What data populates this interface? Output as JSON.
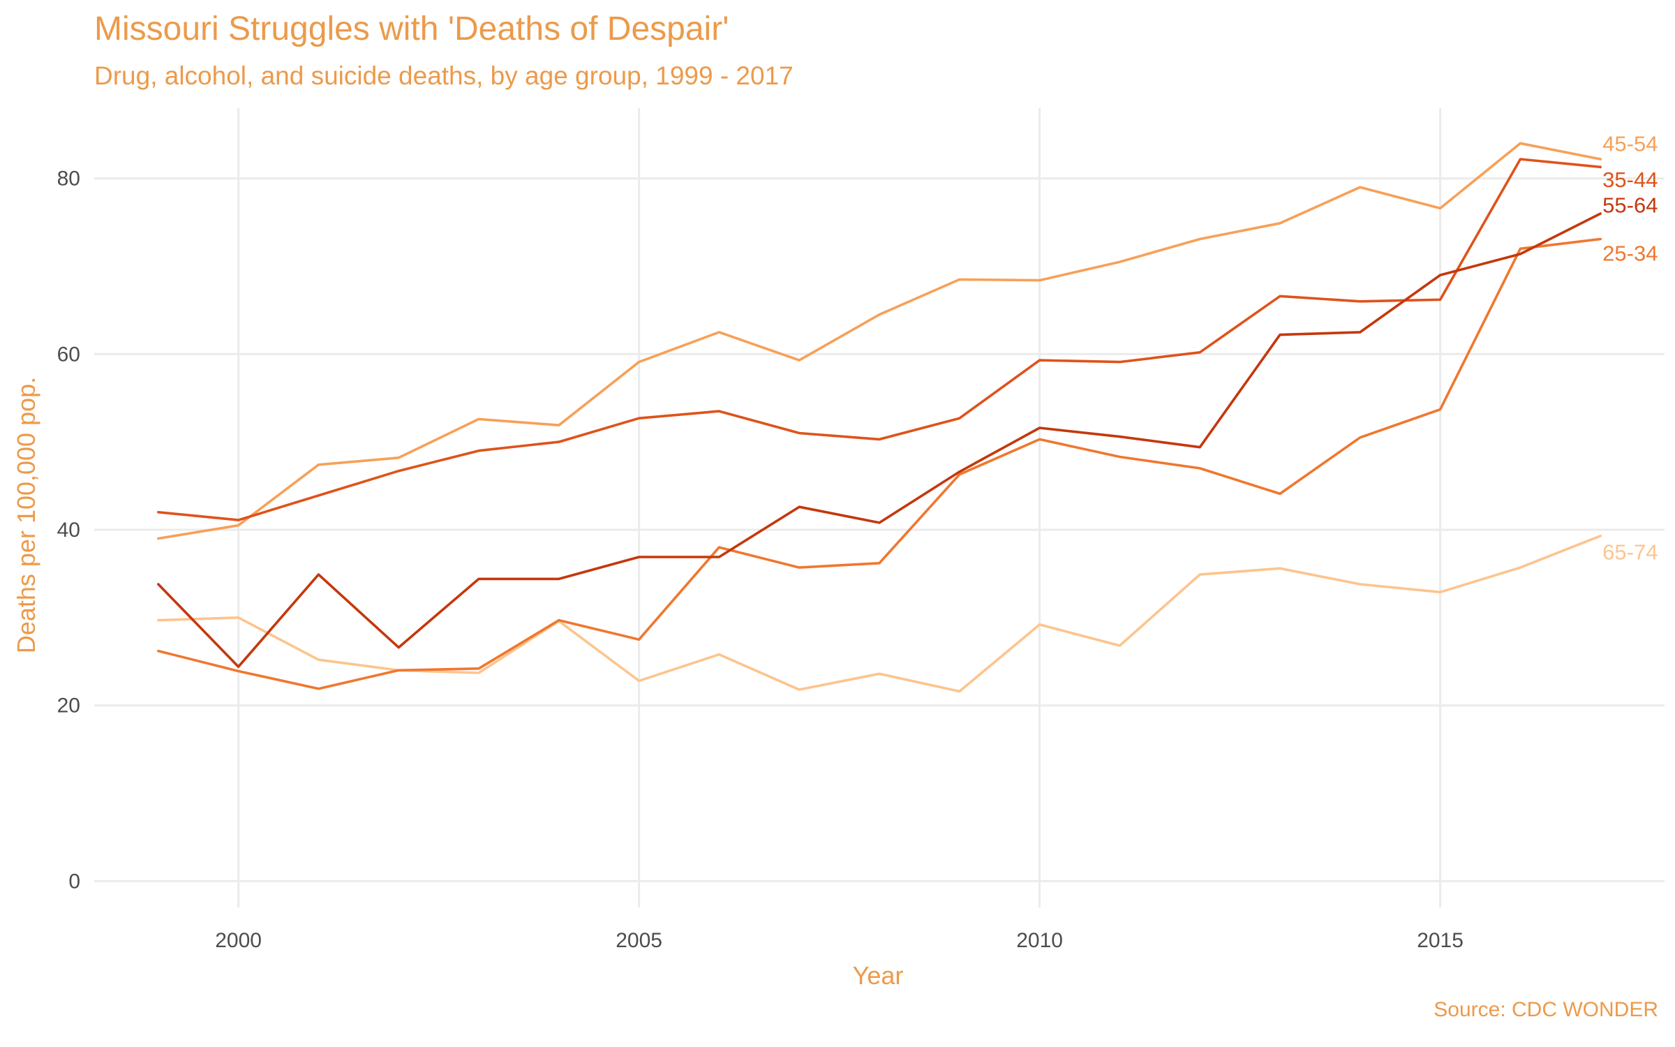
{
  "chart_data": {
    "type": "line",
    "title": "Missouri Struggles with 'Deaths of Despair'",
    "subtitle": "Drug, alcohol, and suicide deaths, by age group, 1999 - 2017",
    "xlabel": "Year",
    "ylabel": "Deaths per 100,000 pop.",
    "source": "Source: CDC WONDER",
    "xlim": [
      1998.2,
      2017.8
    ],
    "ylim": [
      -3,
      88
    ],
    "x_ticks": [
      2000,
      2005,
      2010,
      2015
    ],
    "y_ticks": [
      0,
      20,
      40,
      60,
      80
    ],
    "grid": true,
    "legend": "direct labels at line ends",
    "x": [
      1999,
      2000,
      2001,
      2002,
      2003,
      2004,
      2005,
      2006,
      2007,
      2008,
      2009,
      2010,
      2011,
      2012,
      2013,
      2014,
      2015,
      2016,
      2017
    ],
    "series": [
      {
        "name": "65-74",
        "color": "#fdc48e",
        "values": [
          29.7,
          30.0,
          25.2,
          24.0,
          23.7,
          29.6,
          22.8,
          25.8,
          21.8,
          23.6,
          21.6,
          29.2,
          26.8,
          34.9,
          35.6,
          33.8,
          32.9,
          35.7,
          39.3
        ]
      },
      {
        "name": "45-54",
        "color": "#f7a057",
        "values": [
          39.0,
          40.5,
          47.4,
          48.2,
          52.6,
          51.9,
          59.1,
          62.5,
          59.3,
          64.5,
          68.5,
          68.4,
          70.5,
          73.1,
          74.9,
          79.0,
          76.6,
          84.0,
          82.2
        ]
      },
      {
        "name": "25-34",
        "color": "#f0772e",
        "values": [
          26.2,
          23.9,
          21.9,
          24.0,
          24.2,
          29.7,
          27.5,
          38.0,
          35.7,
          36.2,
          46.3,
          50.3,
          48.3,
          47.0,
          44.1,
          50.5,
          53.7,
          72.0,
          73.1
        ]
      },
      {
        "name": "35-44",
        "color": "#de531a",
        "values": [
          42.0,
          41.1,
          43.9,
          46.7,
          49.0,
          50.0,
          52.7,
          53.5,
          51.0,
          50.3,
          52.7,
          59.3,
          59.1,
          60.2,
          66.6,
          66.0,
          66.2,
          82.2,
          81.3
        ]
      },
      {
        "name": "55-64",
        "color": "#c4380c",
        "values": [
          33.8,
          24.4,
          34.9,
          26.6,
          34.4,
          34.4,
          36.9,
          36.9,
          42.6,
          40.8,
          46.6,
          51.6,
          50.6,
          49.4,
          62.2,
          62.5,
          69.0,
          71.4,
          76.0
        ]
      }
    ],
    "end_labels": [
      {
        "series": "45-54",
        "text": "45-54",
        "y": 84.0
      },
      {
        "series": "35-44",
        "text": "35-44",
        "y": 79.9
      },
      {
        "series": "55-64",
        "text": "55-64",
        "y": 77.0
      },
      {
        "series": "25-34",
        "text": "25-34",
        "y": 71.5
      },
      {
        "series": "65-74",
        "text": "65-74",
        "y": 37.5
      }
    ]
  }
}
